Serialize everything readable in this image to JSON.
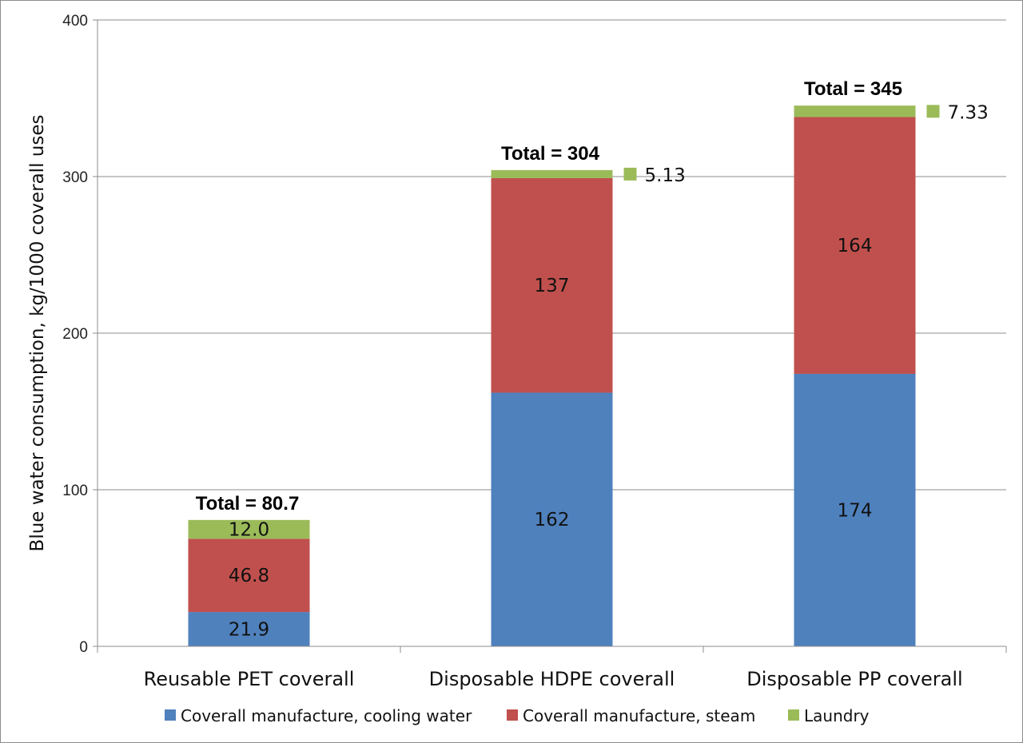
{
  "chart_data": {
    "type": "bar",
    "stacked": true,
    "categories": [
      "Reusable PET coverall",
      "Disposable HDPE coverall",
      "Disposable PP coverall"
    ],
    "series": [
      {
        "name": "Coverall manufacture, cooling water",
        "color": "#4f81bd",
        "values": [
          21.9,
          162,
          174
        ],
        "labels": [
          "21.9",
          "162",
          "174"
        ]
      },
      {
        "name": "Coverall manufacture, steam",
        "color": "#c0504d",
        "values": [
          46.8,
          137,
          164
        ],
        "labels": [
          "46.8",
          "137",
          "164"
        ]
      },
      {
        "name": "Laundry",
        "color": "#9bbb59",
        "values": [
          12.0,
          5.13,
          7.33
        ],
        "labels": [
          "12.0",
          "5.13",
          "7.33"
        ]
      }
    ],
    "totals": [
      "Total = 80.7",
      "Total = 304",
      "Total = 345"
    ],
    "ylabel": "Blue water consumption, kg/1000 coverall uses",
    "xlabel": "",
    "ylim": [
      0,
      400
    ],
    "yticks": [
      "0",
      "100",
      "200",
      "300",
      "400"
    ],
    "grid": true,
    "legend_position": "bottom"
  }
}
